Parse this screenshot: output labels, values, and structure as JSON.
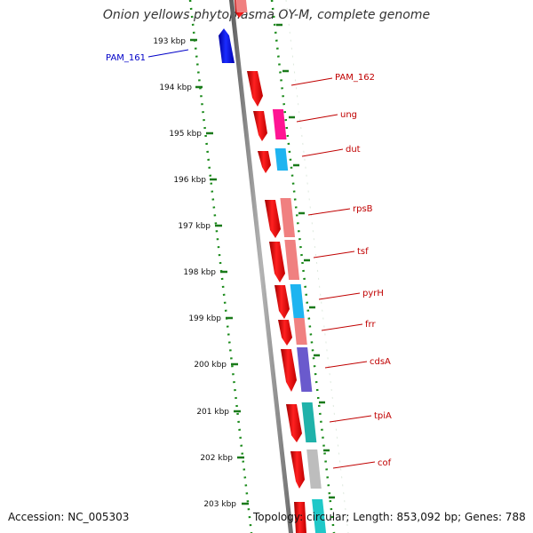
{
  "title": "Onion yellows phytoplasma OY-M, complete genome",
  "accession": "Accession: NC_005303",
  "summary": "Topology: circular; Length: 853,092 bp; Genes: 788",
  "colors": {
    "backbone": "#808080",
    "ring_dots": "#1a8a1a",
    "forward_gene": "#e81010",
    "reverse_gene": "#0a14d8",
    "feature_label": "#c00000",
    "reverse_label": "#0000c8"
  },
  "kbp_ticks": [
    "193 kbp",
    "194 kbp",
    "195 kbp",
    "196 kbp",
    "197 kbp",
    "198 kbp",
    "199 kbp",
    "200 kbp",
    "201 kbp",
    "202 kbp",
    "203 kbp"
  ],
  "gene_labels": [
    {
      "text": "PAM_161",
      "strand": "reverse"
    },
    {
      "text": "PAM_162",
      "strand": "forward"
    },
    {
      "text": "ung",
      "strand": "forward"
    },
    {
      "text": "dut",
      "strand": "forward"
    },
    {
      "text": "rpsB",
      "strand": "forward"
    },
    {
      "text": "tsf",
      "strand": "forward"
    },
    {
      "text": "pyrH",
      "strand": "forward"
    },
    {
      "text": "frr",
      "strand": "forward"
    },
    {
      "text": "cdsA",
      "strand": "forward"
    },
    {
      "text": "tpiA",
      "strand": "forward"
    },
    {
      "text": "cof",
      "strand": "forward"
    }
  ],
  "category_colors": [
    "#ff1493",
    "#1eb4f0",
    "#f08080",
    "#f08080",
    "#1eb4f0",
    "#f08080",
    "#6a5acd",
    "#20b2aa",
    "#bdbdbd",
    "#20c8c8"
  ]
}
